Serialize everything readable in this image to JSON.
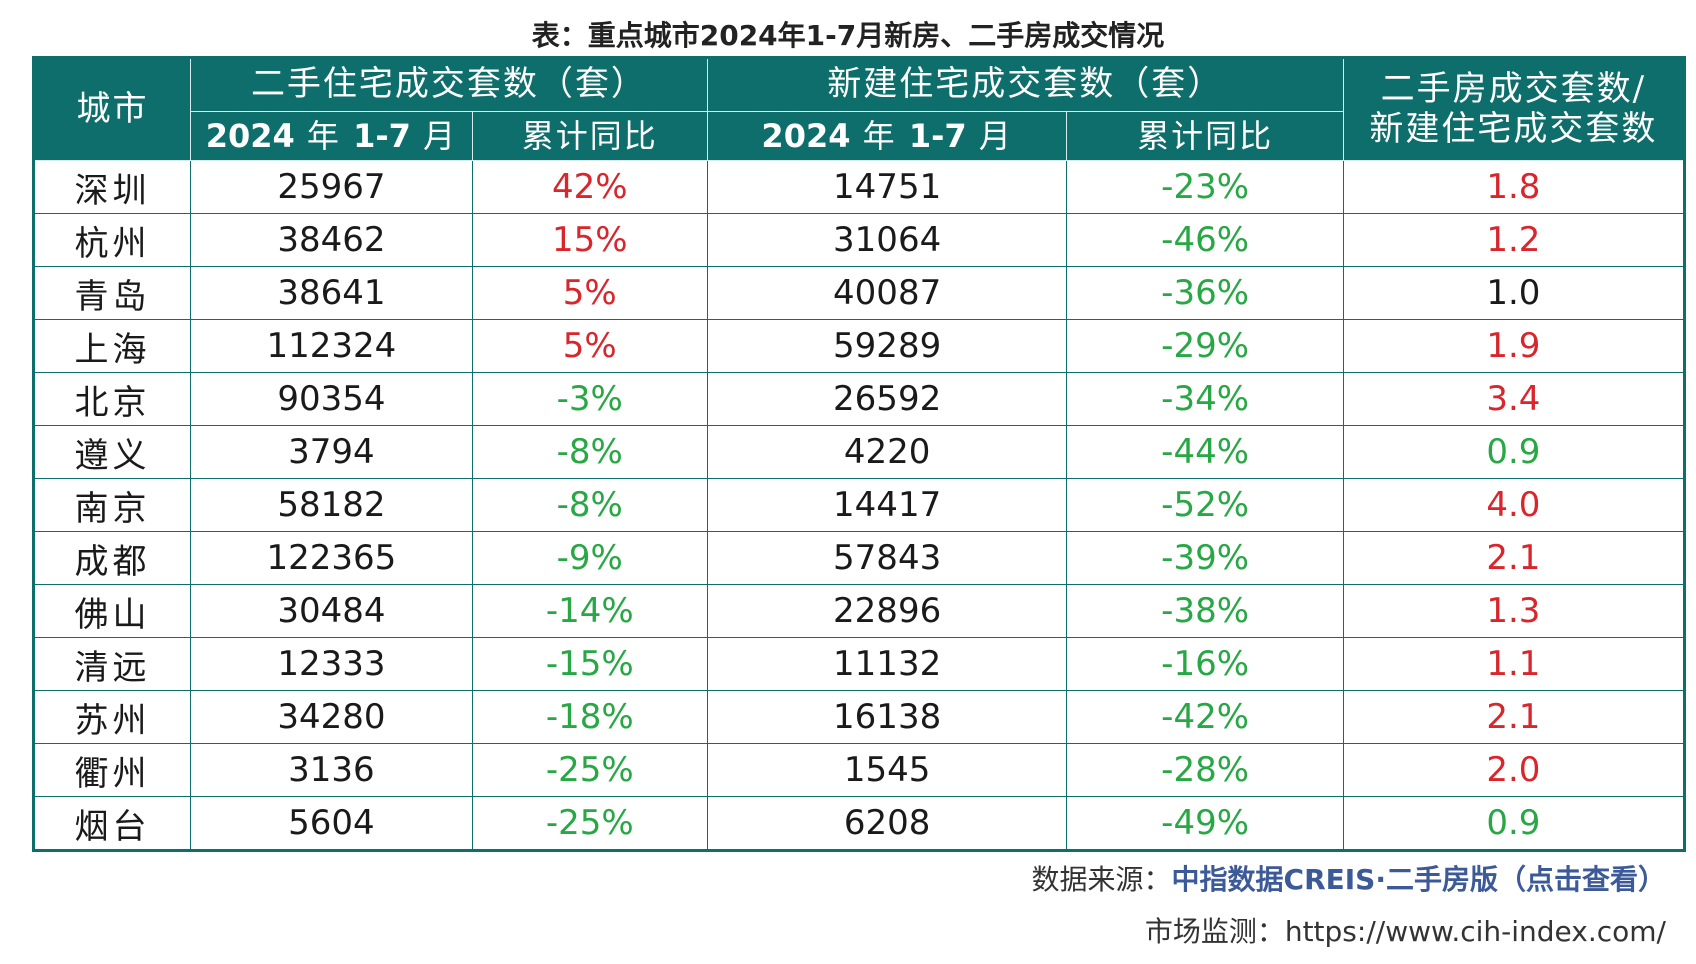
{
  "title": "表：重点城市2024年1-7月新房、二手房成交情况",
  "header": {
    "city": "城市",
    "second_hand_group": "二手住宅成交套数（套）",
    "new_group": "新建住宅成交套数（套）",
    "ratio_line1": "二手房成交套数/",
    "ratio_line2": "新建住宅成交套数",
    "period_num1": "2024",
    "period_year": "年",
    "period_num2": "1-7",
    "period_month": "月",
    "yoy": "累计同比"
  },
  "colors": {
    "teal": "#0e6e6b",
    "red": "#d8262c",
    "green": "#28a745",
    "black": "#1a1a1a"
  },
  "rows": [
    {
      "city": "深圳",
      "sh_count": "25967",
      "sh_yoy": "42%",
      "sh_dir": "up",
      "new_count": "14751",
      "new_yoy": "-23%",
      "ratio": "1.8",
      "ratio_dir": "up"
    },
    {
      "city": "杭州",
      "sh_count": "38462",
      "sh_yoy": "15%",
      "sh_dir": "up",
      "new_count": "31064",
      "new_yoy": "-46%",
      "ratio": "1.2",
      "ratio_dir": "up"
    },
    {
      "city": "青岛",
      "sh_count": "38641",
      "sh_yoy": "5%",
      "sh_dir": "up",
      "new_count": "40087",
      "new_yoy": "-36%",
      "ratio": "1.0",
      "ratio_dir": "flat"
    },
    {
      "city": "上海",
      "sh_count": "112324",
      "sh_yoy": "5%",
      "sh_dir": "up",
      "new_count": "59289",
      "new_yoy": "-29%",
      "ratio": "1.9",
      "ratio_dir": "up"
    },
    {
      "city": "北京",
      "sh_count": "90354",
      "sh_yoy": "-3%",
      "sh_dir": "down",
      "new_count": "26592",
      "new_yoy": "-34%",
      "ratio": "3.4",
      "ratio_dir": "up"
    },
    {
      "city": "遵义",
      "sh_count": "3794",
      "sh_yoy": "-8%",
      "sh_dir": "down",
      "new_count": "4220",
      "new_yoy": "-44%",
      "ratio": "0.9",
      "ratio_dir": "down"
    },
    {
      "city": "南京",
      "sh_count": "58182",
      "sh_yoy": "-8%",
      "sh_dir": "down",
      "new_count": "14417",
      "new_yoy": "-52%",
      "ratio": "4.0",
      "ratio_dir": "up"
    },
    {
      "city": "成都",
      "sh_count": "122365",
      "sh_yoy": "-9%",
      "sh_dir": "down",
      "new_count": "57843",
      "new_yoy": "-39%",
      "ratio": "2.1",
      "ratio_dir": "up"
    },
    {
      "city": "佛山",
      "sh_count": "30484",
      "sh_yoy": "-14%",
      "sh_dir": "down",
      "new_count": "22896",
      "new_yoy": "-38%",
      "ratio": "1.3",
      "ratio_dir": "up"
    },
    {
      "city": "清远",
      "sh_count": "12333",
      "sh_yoy": "-15%",
      "sh_dir": "down",
      "new_count": "11132",
      "new_yoy": "-16%",
      "ratio": "1.1",
      "ratio_dir": "up"
    },
    {
      "city": "苏州",
      "sh_count": "34280",
      "sh_yoy": "-18%",
      "sh_dir": "down",
      "new_count": "16138",
      "new_yoy": "-42%",
      "ratio": "2.1",
      "ratio_dir": "up"
    },
    {
      "city": "衢州",
      "sh_count": "3136",
      "sh_yoy": "-25%",
      "sh_dir": "down",
      "new_count": "1545",
      "new_yoy": "-28%",
      "ratio": "2.0",
      "ratio_dir": "up"
    },
    {
      "city": "烟台",
      "sh_count": "5604",
      "sh_yoy": "-25%",
      "sh_dir": "down",
      "new_count": "6208",
      "new_yoy": "-49%",
      "ratio": "0.9",
      "ratio_dir": "down"
    }
  ],
  "source": {
    "label": "数据来源：",
    "link": "中指数据CREIS·二手房版（点击查看）"
  },
  "monitor": {
    "label": "市场监测：",
    "url": "https://www.cih-index.com/"
  }
}
